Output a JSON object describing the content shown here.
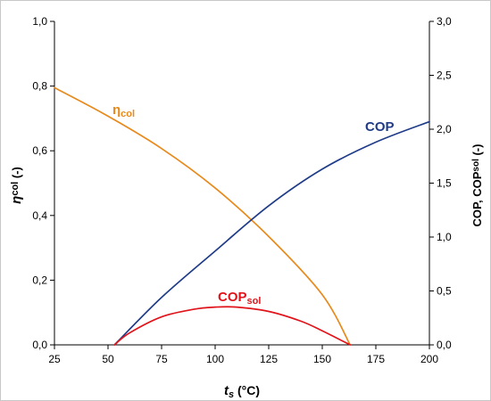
{
  "chart_data": {
    "type": "line",
    "xlabel": {
      "main": "t",
      "sub": "s",
      "unit": " (°C)"
    },
    "ylabel_left": {
      "main": "η",
      "sub": "col",
      "unit": " (-)"
    },
    "ylabel_right": {
      "p1": "COP, COP",
      "sub": "sol",
      "p2": " (-)"
    },
    "xlim": [
      25,
      200
    ],
    "ylim_left": [
      0,
      1
    ],
    "ylim_right": [
      0,
      3
    ],
    "x_ticks": [
      "25",
      "50",
      "75",
      "100",
      "125",
      "150",
      "175",
      "200"
    ],
    "y_left_ticks": [
      "0,0",
      "0,2",
      "0,4",
      "0,6",
      "0,8",
      "1,0"
    ],
    "y_right_ticks": [
      "0,0",
      "0,5",
      "1,0",
      "1,5",
      "2,0",
      "2,5",
      "3,0"
    ],
    "grid": false,
    "series": [
      {
        "key": "eta_col",
        "label_main": "η",
        "label_sub": "col",
        "axis": "left",
        "color": "#E88A1C",
        "x": [
          25,
          50,
          75,
          100,
          125,
          150,
          163
        ],
        "y": [
          0.795,
          0.707,
          0.607,
          0.485,
          0.335,
          0.155,
          0.0
        ]
      },
      {
        "key": "cop",
        "label_main": "COP",
        "label_sub": "",
        "axis": "right",
        "color": "#1F3C88",
        "x": [
          53,
          75,
          100,
          125,
          150,
          175,
          200
        ],
        "y": [
          0.0,
          0.44,
          0.87,
          1.29,
          1.63,
          1.88,
          2.07
        ]
      },
      {
        "key": "cop_sol",
        "label_main": "COP",
        "label_sub": "sol",
        "axis": "right",
        "color": "#E0141A",
        "x": [
          53,
          60,
          75,
          90,
          100,
          110,
          125,
          140,
          150,
          163
        ],
        "y": [
          0.0,
          0.11,
          0.26,
          0.33,
          0.35,
          0.35,
          0.31,
          0.22,
          0.13,
          0.0
        ]
      }
    ]
  }
}
